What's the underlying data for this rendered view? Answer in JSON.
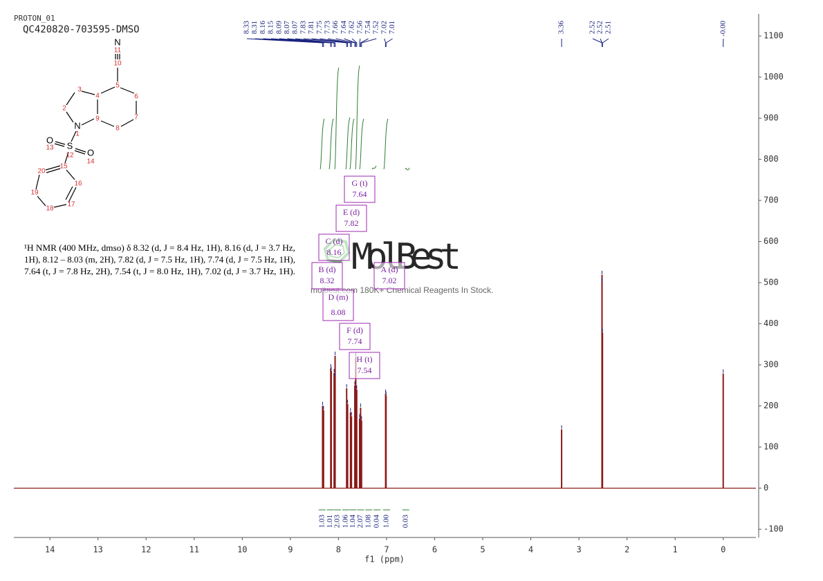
{
  "chart_data": {
    "type": "nmr",
    "experiment": "PROTON_01",
    "sample": "QC420820-703595-DMSO",
    "xlabel": "f1 (ppm)",
    "xlim": [
      14.75,
      -0.68
    ],
    "xticks": [
      14,
      13,
      12,
      11,
      10,
      9,
      8,
      7,
      6,
      5,
      4,
      3,
      2,
      1,
      0
    ],
    "ylim": [
      -120,
      1154
    ],
    "yticks": [
      -100,
      0,
      100,
      200,
      300,
      400,
      500,
      600,
      700,
      800,
      900,
      1000,
      1100
    ],
    "color": "#8b1a1a",
    "label_color": "#1a237e",
    "integral_color": "#2e7d32",
    "peaks": {
      "x": [
        8.33,
        8.31,
        8.16,
        8.15,
        8.09,
        8.07,
        8.07,
        7.83,
        7.81,
        7.75,
        7.73,
        7.66,
        7.64,
        7.62,
        7.56,
        7.54,
        7.52,
        7.02,
        7.01,
        3.36,
        2.52,
        2.52,
        2.51,
        0.0
      ],
      "values": [
        200,
        190,
        292,
        285,
        280,
        322,
        270,
        243,
        205,
        185,
        175,
        250,
        319,
        240,
        170,
        196,
        165,
        230,
        225,
        143,
        519,
        500,
        378,
        279
      ]
    },
    "peak_labels": [
      "8.33",
      "8.31",
      "8.16",
      "8.15",
      "8.09",
      "8.07",
      "8.07",
      "7.83",
      "7.81",
      "7.75",
      "7.73",
      "7.66",
      "7.64",
      "7.62",
      "7.56",
      "7.54",
      "7.52",
      "7.02",
      "7.01",
      "3.36",
      "2.52",
      "2.52",
      "2.51",
      "-0.00"
    ],
    "integrals": {
      "x": [
        8.34,
        8.17,
        8.02,
        7.85,
        7.7,
        7.54,
        7.37,
        7.2,
        7.0,
        6.6
      ],
      "values": [
        1.03,
        1.01,
        2.03,
        1.06,
        1.04,
        2.07,
        1.08,
        0.04,
        1.0,
        0.03
      ],
      "value_labels": [
        "1.03",
        "1.01",
        "2.03",
        "1.06",
        "1.04",
        "2.07",
        "1.08",
        "0.04",
        "1.00",
        "0.03"
      ]
    },
    "multiplets": [
      {
        "label": "A (d)",
        "shift": 7.02
      },
      {
        "label": "B (d)",
        "shift": 8.32
      },
      {
        "label": "C (d)",
        "shift": 8.16
      },
      {
        "label": "D (m)",
        "shift": 8.08
      },
      {
        "label": "E (d)",
        "shift": 7.82
      },
      {
        "label": "F (d)",
        "shift": 7.74
      },
      {
        "label": "G (t)",
        "shift": 7.64
      },
      {
        "label": "H (t)",
        "shift": 7.54
      }
    ],
    "description": [
      "¹H NMR (400 MHz, dmso) δ 8.32 (d, J = 8.4 Hz, 1H), 8.16 (d, J = 3.7 Hz,",
      "1H), 8.12 – 8.03 (m, 2H), 7.82 (d, J = 7.5 Hz, 1H), 7.74 (d, J = 7.5 Hz, 1H),",
      "7.64 (t, J = 7.8 Hz, 2H), 7.54 (t, J = 8.0 Hz, 1H), 7.02 (d, J = 3.7 Hz, 1H)."
    ],
    "structure_labels": [
      "N",
      "11",
      "10",
      "3",
      "4",
      "5",
      "6",
      "2",
      "7",
      "N",
      "9",
      "8",
      "1",
      "O",
      "13",
      "S",
      "12",
      "O",
      "14",
      "20",
      "15",
      "16",
      "19",
      "18",
      "17"
    ],
    "watermark": "MolBest",
    "watermark_caption": "molbest.com 180K+ Chemical Reagents In Stock."
  }
}
